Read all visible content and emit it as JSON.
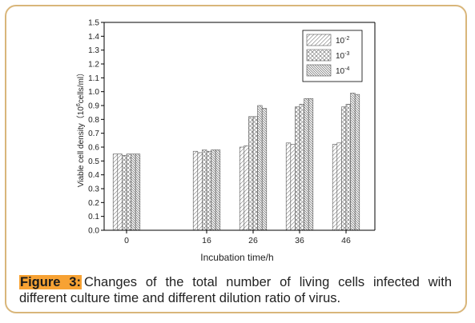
{
  "caption": {
    "label": "Figure 3:",
    "text": "Changes of the total number of living cells infected with different culture time and different dilution ratio of virus."
  },
  "chart_data": {
    "type": "bar",
    "xlabel": "Incubation time/h",
    "ylabel": "Viable cell density（10",
    "ylabel_exponent": "6",
    "ylabel_unit": "cells/ml）",
    "ylim": [
      0,
      1.5
    ],
    "yticks": [
      "0.0",
      "0.1",
      "0.2",
      "0.3",
      "0.4",
      "0.5",
      "0.6",
      "0.7",
      "0.8",
      "0.9",
      "1.0",
      "1.1",
      "1.2",
      "1.3",
      "1.4",
      "1.5"
    ],
    "categories": [
      "0",
      "16",
      "26",
      "36",
      "46"
    ],
    "legend_position": "top-right",
    "grid": false,
    "series": [
      {
        "name": "10",
        "exponent": "-2",
        "pattern": "diag",
        "values": [
          0.55,
          0.57,
          0.6,
          0.63,
          0.62
        ]
      },
      {
        "name": "10",
        "exponent": "-3",
        "pattern": "cross",
        "values": [
          0.55,
          0.58,
          0.82,
          0.89,
          0.89
        ]
      },
      {
        "name": "10",
        "exponent": "-4",
        "pattern": "dense",
        "values": [
          0.55,
          0.58,
          0.89,
          0.95,
          0.98
        ]
      }
    ],
    "bar_values_per_group": [
      [
        0.55,
        0.55,
        0.54,
        0.55,
        0.55,
        0.55
      ],
      [
        0.57,
        0.56,
        0.58,
        0.57,
        0.58,
        0.58
      ],
      [
        0.6,
        0.61,
        0.82,
        0.82,
        0.9,
        0.88
      ],
      [
        0.63,
        0.62,
        0.89,
        0.91,
        0.95,
        0.95
      ],
      [
        0.62,
        0.63,
        0.89,
        0.91,
        0.99,
        0.98
      ]
    ]
  },
  "colors": {
    "frame_border": "#d9b67a",
    "caption_highlight": "#f7a233",
    "axis": "#000000",
    "bar_stroke": "#555555"
  }
}
